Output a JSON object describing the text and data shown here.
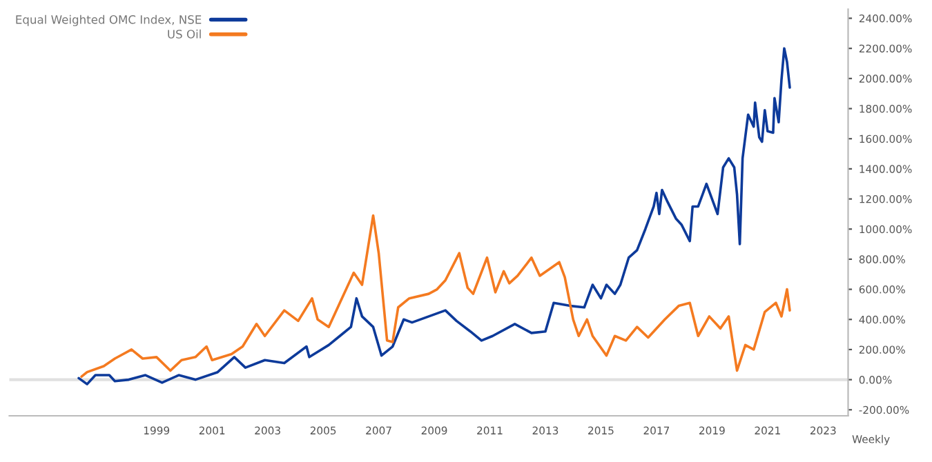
{
  "chart_data": {
    "type": "line",
    "x": [
      1996.2,
      1996.5,
      1996.8,
      1997.3,
      1997.5,
      1998.0,
      1998.6,
      1999.2,
      1999.8,
      2000.4,
      2001.2,
      2001.8,
      2002.2,
      2002.9,
      2003.6,
      2004.4,
      2004.5,
      2005.2,
      2005.6,
      2006.0,
      2006.2,
      2006.4,
      2006.8,
      2007.1,
      2007.5,
      2007.9,
      2008.2,
      2008.8,
      2009.4,
      2009.8,
      2010.3,
      2010.7,
      2011.1,
      2011.9,
      2012.5,
      2013.0,
      2013.3,
      2013.9,
      2014.4,
      2014.7,
      2015.0,
      2015.2,
      2015.5,
      2015.7,
      2016.0,
      2016.3,
      2016.6,
      2016.9,
      2017.0,
      2017.1,
      2017.2,
      2017.4,
      2017.7,
      2017.9,
      2018.2,
      2018.3,
      2018.5,
      2018.8,
      2019.2,
      2019.4,
      2019.6,
      2019.8,
      2019.9,
      2020.0,
      2020.1,
      2020.3,
      2020.5,
      2020.55,
      2020.7,
      2020.8,
      2020.9,
      2021.0,
      2021.2,
      2021.25,
      2021.4,
      2021.5,
      2021.6,
      2021.7,
      2021.8
    ],
    "series": [
      {
        "name": "Equal Weighted OMC Index, NSE",
        "color": "#0d3a9a",
        "values": [
          10,
          -30,
          30,
          30,
          -10,
          0,
          30,
          -20,
          30,
          0,
          50,
          150,
          80,
          130,
          110,
          220,
          150,
          230,
          290,
          350,
          540,
          420,
          350,
          160,
          220,
          400,
          380,
          420,
          460,
          390,
          320,
          260,
          290,
          370,
          310,
          320,
          510,
          490,
          480,
          630,
          540,
          630,
          570,
          630,
          810,
          860,
          1000,
          1150,
          1240,
          1100,
          1260,
          1180,
          1070,
          1030,
          920,
          1150,
          1150,
          1300,
          1100,
          1410,
          1470,
          1410,
          1230,
          900,
          1470,
          1760,
          1680,
          1840,
          1610,
          1580,
          1790,
          1650,
          1640,
          1870,
          1710,
          1990,
          2200,
          2110,
          1940
        ]
      },
      {
        "name": "US Oil",
        "color": "#f47a20",
        "x": [
          1996.3,
          1996.5,
          1997.1,
          1997.5,
          1998.1,
          1998.5,
          1999.0,
          1999.5,
          1999.9,
          2000.4,
          2000.8,
          2001.0,
          2001.7,
          2002.1,
          2002.6,
          2002.9,
          2003.6,
          2004.1,
          2004.6,
          2004.8,
          2005.2,
          2005.6,
          2006.1,
          2006.4,
          2006.8,
          2007.0,
          2007.3,
          2007.5,
          2007.7,
          2008.1,
          2008.8,
          2009.1,
          2009.4,
          2009.9,
          2010.2,
          2010.4,
          2010.9,
          2011.2,
          2011.5,
          2011.7,
          2012.0,
          2012.5,
          2012.8,
          2013.5,
          2013.7,
          2014.0,
          2014.2,
          2014.5,
          2014.7,
          2015.2,
          2015.5,
          2015.9,
          2016.3,
          2016.7,
          2017.3,
          2017.8,
          2018.2,
          2018.5,
          2018.9,
          2019.3,
          2019.6,
          2019.9,
          2020.2,
          2020.5,
          2020.9,
          2021.3,
          2021.5,
          2021.7,
          2021.8
        ],
        "values": [
          20,
          50,
          90,
          140,
          200,
          140,
          150,
          60,
          130,
          150,
          220,
          130,
          170,
          220,
          370,
          290,
          460,
          390,
          540,
          400,
          350,
          510,
          710,
          630,
          1090,
          840,
          260,
          250,
          480,
          540,
          570,
          600,
          660,
          840,
          610,
          570,
          810,
          580,
          720,
          640,
          690,
          810,
          690,
          780,
          680,
          400,
          290,
          400,
          290,
          160,
          290,
          260,
          350,
          280,
          400,
          490,
          510,
          290,
          420,
          340,
          420,
          60,
          230,
          200,
          450,
          510,
          420,
          600,
          460
        ]
      }
    ],
    "xlim": [
      1993.7,
      2023.9
    ],
    "xticks": [
      1999,
      2001,
      2003,
      2005,
      2007,
      2009,
      2011,
      2013,
      2015,
      2017,
      2019,
      2021,
      2023
    ],
    "ylim": [
      -240,
      2460
    ],
    "yticks": [
      {
        "value": -200,
        "label": "-200.00%"
      },
      {
        "value": 0,
        "label": "0.00%"
      },
      {
        "value": 200,
        "label": "200.00%"
      },
      {
        "value": 400,
        "label": "400.00%"
      },
      {
        "value": 600,
        "label": "600.00%"
      },
      {
        "value": 800,
        "label": "800.00%"
      },
      {
        "value": 1000,
        "label": "1000.00%"
      },
      {
        "value": 1200,
        "label": "1200.00%"
      },
      {
        "value": 1400,
        "label": "1400.00%"
      },
      {
        "value": 1600,
        "label": "1600.00%"
      },
      {
        "value": 1800,
        "label": "1800.00%"
      },
      {
        "value": 2000,
        "label": "2000.00%"
      },
      {
        "value": 2200,
        "label": "2200.00%"
      },
      {
        "value": 2400,
        "label": "2400.00%"
      }
    ],
    "ref_lines": [
      {
        "axis": "y",
        "value": 0,
        "color": "#e0e0e0"
      }
    ],
    "annotations": [
      "Weekly"
    ],
    "grid": false,
    "legend": "top left",
    "line_style": "solid",
    "marker": "none"
  }
}
